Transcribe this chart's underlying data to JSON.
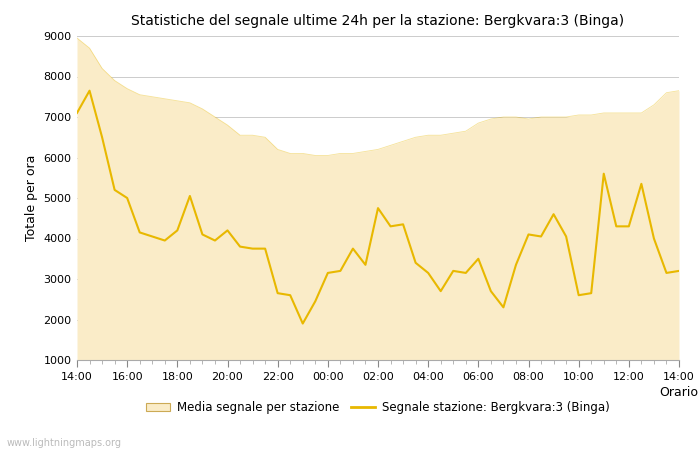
{
  "title": "Statistiche del segnale ultime 24h per la stazione: Bergkvara:3 (Binga)",
  "xlabel": "Orario",
  "ylabel": "Totale per ora",
  "ylim": [
    1000,
    9000
  ],
  "yticks": [
    1000,
    2000,
    3000,
    4000,
    5000,
    6000,
    7000,
    8000,
    9000
  ],
  "x_labels": [
    "14:00",
    "16:00",
    "18:00",
    "20:00",
    "22:00",
    "00:00",
    "02:00",
    "04:00",
    "06:00",
    "08:00",
    "10:00",
    "12:00",
    "14:00"
  ],
  "background_color": "#ffffff",
  "fill_color": "#FAECC8",
  "line_color": "#E8B800",
  "watermark": "www.lightningmaps.org",
  "legend_fill": "Media segnale per stazione",
  "legend_line": "Segnale stazione: Bergkvara:3 (Binga)",
  "fill_x": [
    0,
    1,
    2,
    3,
    4,
    5,
    6,
    7,
    8,
    9,
    10,
    11,
    12,
    13,
    14,
    15,
    16,
    17,
    18,
    19,
    20,
    21,
    22,
    23,
    24,
    25,
    26,
    27,
    28,
    29,
    30,
    31,
    32,
    33,
    34,
    35,
    36,
    37,
    38,
    39,
    40,
    41,
    42,
    43,
    44,
    45,
    46,
    47,
    48
  ],
  "fill_y": [
    8950,
    8700,
    8200,
    7900,
    7700,
    7550,
    7500,
    7450,
    7400,
    7350,
    7200,
    7000,
    6800,
    6550,
    6550,
    6500,
    6200,
    6100,
    6100,
    6050,
    6050,
    6100,
    6100,
    6150,
    6200,
    6300,
    6400,
    6500,
    6550,
    6550,
    6600,
    6650,
    6850,
    6950,
    7000,
    7000,
    6950,
    7000,
    7000,
    7000,
    7050,
    7050,
    7100,
    7100,
    7100,
    7100,
    7300,
    7600,
    7650
  ],
  "line_x": [
    0,
    1,
    2,
    3,
    4,
    5,
    6,
    7,
    8,
    9,
    10,
    11,
    12,
    13,
    14,
    15,
    16,
    17,
    18,
    19,
    20,
    21,
    22,
    23,
    24,
    25,
    26,
    27,
    28,
    29,
    30,
    31,
    32,
    33,
    34,
    35,
    36,
    37,
    38,
    39,
    40,
    41,
    42,
    43,
    44,
    45,
    46,
    47,
    48
  ],
  "line_y": [
    7100,
    7650,
    6500,
    5200,
    5000,
    4150,
    4050,
    3950,
    4200,
    5050,
    4100,
    3950,
    4200,
    3800,
    3750,
    3750,
    2650,
    2600,
    1900,
    2450,
    3150,
    3200,
    3750,
    3350,
    4750,
    4300,
    4350,
    3400,
    3150,
    2700,
    3200,
    3150,
    3500,
    2700,
    2300,
    3350,
    4100,
    4050,
    4600,
    4050,
    2600,
    2650,
    5600,
    4300,
    4300,
    5350,
    4000,
    3150,
    3200
  ],
  "xlim": [
    0,
    48
  ]
}
